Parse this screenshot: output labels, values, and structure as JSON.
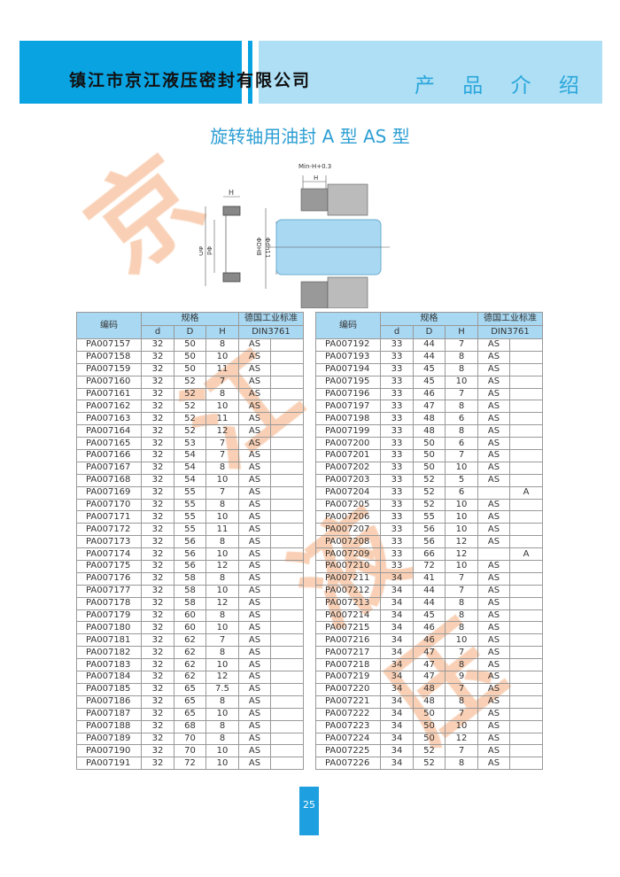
{
  "header": {
    "company": "镇江市京江液压密封有限公司",
    "section": "产 品 介 绍",
    "colors": {
      "dark": "#0aa3e2",
      "light": "#aedff5"
    }
  },
  "title": "旋转轴用油封 A 型   AS 型",
  "watermark": [
    "京",
    "江",
    "液",
    "压"
  ],
  "diagram": {
    "labels": [
      "H",
      "ΦD",
      "Φd",
      "Min-H+0.3",
      "H",
      "ΦDH8",
      "Φdh11"
    ]
  },
  "table_headers": {
    "code": "编码",
    "spec": "规格",
    "d": "d",
    "D": "D",
    "H": "H",
    "standard": "德国工业标准",
    "din": "DIN3761"
  },
  "left_rows": [
    [
      "PA007157",
      "32",
      "50",
      "8",
      "AS",
      ""
    ],
    [
      "PA007158",
      "32",
      "50",
      "10",
      "AS",
      ""
    ],
    [
      "PA007159",
      "32",
      "50",
      "11",
      "AS",
      ""
    ],
    [
      "PA007160",
      "32",
      "52",
      "7",
      "AS",
      ""
    ],
    [
      "PA007161",
      "32",
      "52",
      "8",
      "AS",
      ""
    ],
    [
      "PA007162",
      "32",
      "52",
      "10",
      "AS",
      ""
    ],
    [
      "PA007163",
      "32",
      "52",
      "11",
      "AS",
      ""
    ],
    [
      "PA007164",
      "32",
      "52",
      "12",
      "AS",
      ""
    ],
    [
      "PA007165",
      "32",
      "53",
      "7",
      "AS",
      ""
    ],
    [
      "PA007166",
      "32",
      "54",
      "7",
      "AS",
      ""
    ],
    [
      "PA007167",
      "32",
      "54",
      "8",
      "AS",
      ""
    ],
    [
      "PA007168",
      "32",
      "54",
      "10",
      "AS",
      ""
    ],
    [
      "PA007169",
      "32",
      "55",
      "7",
      "AS",
      ""
    ],
    [
      "PA007170",
      "32",
      "55",
      "8",
      "AS",
      ""
    ],
    [
      "PA007171",
      "32",
      "55",
      "10",
      "AS",
      ""
    ],
    [
      "PA007172",
      "32",
      "55",
      "11",
      "AS",
      ""
    ],
    [
      "PA007173",
      "32",
      "56",
      "8",
      "AS",
      ""
    ],
    [
      "PA007174",
      "32",
      "56",
      "10",
      "AS",
      ""
    ],
    [
      "PA007175",
      "32",
      "56",
      "12",
      "AS",
      ""
    ],
    [
      "PA007176",
      "32",
      "58",
      "8",
      "AS",
      ""
    ],
    [
      "PA007177",
      "32",
      "58",
      "10",
      "AS",
      ""
    ],
    [
      "PA007178",
      "32",
      "58",
      "12",
      "AS",
      ""
    ],
    [
      "PA007179",
      "32",
      "60",
      "8",
      "AS",
      ""
    ],
    [
      "PA007180",
      "32",
      "60",
      "10",
      "AS",
      ""
    ],
    [
      "PA007181",
      "32",
      "62",
      "7",
      "AS",
      ""
    ],
    [
      "PA007182",
      "32",
      "62",
      "8",
      "AS",
      ""
    ],
    [
      "PA007183",
      "32",
      "62",
      "10",
      "AS",
      ""
    ],
    [
      "PA007184",
      "32",
      "62",
      "12",
      "AS",
      ""
    ],
    [
      "PA007185",
      "32",
      "65",
      "7.5",
      "AS",
      ""
    ],
    [
      "PA007186",
      "32",
      "65",
      "8",
      "AS",
      ""
    ],
    [
      "PA007187",
      "32",
      "65",
      "10",
      "AS",
      ""
    ],
    [
      "PA007188",
      "32",
      "68",
      "8",
      "AS",
      ""
    ],
    [
      "PA007189",
      "32",
      "70",
      "8",
      "AS",
      ""
    ],
    [
      "PA007190",
      "32",
      "70",
      "10",
      "AS",
      ""
    ],
    [
      "PA007191",
      "32",
      "72",
      "10",
      "AS",
      ""
    ]
  ],
  "right_rows": [
    [
      "PA007192",
      "33",
      "44",
      "7",
      "AS",
      ""
    ],
    [
      "PA007193",
      "33",
      "44",
      "8",
      "AS",
      ""
    ],
    [
      "PA007194",
      "33",
      "45",
      "8",
      "AS",
      ""
    ],
    [
      "PA007195",
      "33",
      "45",
      "10",
      "AS",
      ""
    ],
    [
      "PA007196",
      "33",
      "46",
      "7",
      "AS",
      ""
    ],
    [
      "PA007197",
      "33",
      "47",
      "8",
      "AS",
      ""
    ],
    [
      "PA007198",
      "33",
      "48",
      "6",
      "AS",
      ""
    ],
    [
      "PA007199",
      "33",
      "48",
      "8",
      "AS",
      ""
    ],
    [
      "PA007200",
      "33",
      "50",
      "6",
      "AS",
      ""
    ],
    [
      "PA007201",
      "33",
      "50",
      "7",
      "AS",
      ""
    ],
    [
      "PA007202",
      "33",
      "50",
      "10",
      "AS",
      ""
    ],
    [
      "PA007203",
      "33",
      "52",
      "5",
      "AS",
      ""
    ],
    [
      "PA007204",
      "33",
      "52",
      "6",
      "",
      "A"
    ],
    [
      "PA007205",
      "33",
      "52",
      "10",
      "AS",
      ""
    ],
    [
      "PA007206",
      "33",
      "55",
      "10",
      "AS",
      ""
    ],
    [
      "PA007207",
      "33",
      "56",
      "10",
      "AS",
      ""
    ],
    [
      "PA007208",
      "33",
      "56",
      "12",
      "AS",
      ""
    ],
    [
      "PA007209",
      "33",
      "66",
      "12",
      "",
      "A"
    ],
    [
      "PA007210",
      "33",
      "72",
      "10",
      "AS",
      ""
    ],
    [
      "PA007211",
      "34",
      "41",
      "7",
      "AS",
      ""
    ],
    [
      "PA007212",
      "34",
      "44",
      "7",
      "AS",
      ""
    ],
    [
      "PA007213",
      "34",
      "44",
      "8",
      "AS",
      ""
    ],
    [
      "PA007214",
      "34",
      "45",
      "8",
      "AS",
      ""
    ],
    [
      "PA007215",
      "34",
      "46",
      "8",
      "AS",
      ""
    ],
    [
      "PA007216",
      "34",
      "46",
      "10",
      "AS",
      ""
    ],
    [
      "PA007217",
      "34",
      "47",
      "7",
      "AS",
      ""
    ],
    [
      "PA007218",
      "34",
      "47",
      "8",
      "AS",
      ""
    ],
    [
      "PA007219",
      "34",
      "47",
      "9",
      "AS",
      ""
    ],
    [
      "PA007220",
      "34",
      "48",
      "7",
      "AS",
      ""
    ],
    [
      "PA007221",
      "34",
      "48",
      "8",
      "AS",
      ""
    ],
    [
      "PA007222",
      "34",
      "50",
      "7",
      "AS",
      ""
    ],
    [
      "PA007223",
      "34",
      "50",
      "10",
      "AS",
      ""
    ],
    [
      "PA007224",
      "34",
      "50",
      "12",
      "AS",
      ""
    ],
    [
      "PA007225",
      "34",
      "52",
      "7",
      "AS",
      ""
    ],
    [
      "PA007226",
      "34",
      "52",
      "8",
      "AS",
      ""
    ]
  ],
  "page_number": "25"
}
